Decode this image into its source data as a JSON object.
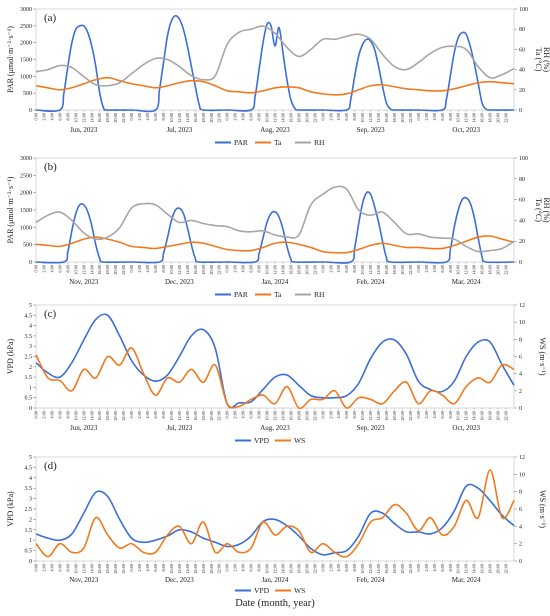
{
  "figure": {
    "x_title": "Date (month, year)"
  },
  "colors": {
    "PAR": "#3b6fd4",
    "Ta": "#f07a1e",
    "RH": "#a6a6a6",
    "VPD": "#3b6fd4",
    "WS": "#f07a1e",
    "grid": "#e0e0e0"
  },
  "chart_data": [
    {
      "id": "a",
      "panel_label": "(a)",
      "type": "line",
      "ylabel_left": "PAR (μmol·m⁻²·s⁻¹)",
      "ylabel_right": "Ta (°C)\nRH (%)",
      "ylim_left": [
        0,
        3000
      ],
      "yticks_left": [
        0,
        500,
        1000,
        1500,
        2000,
        2500,
        3000
      ],
      "ylim_right": [
        0,
        100
      ],
      "yticks_right": [
        0,
        20,
        40,
        60,
        80,
        100
      ],
      "hour_ticks": [
        "0:00",
        "2:00",
        "4:00",
        "6:00",
        "8:00",
        "10:00",
        "12:00",
        "14:00",
        "16:00",
        "18:00",
        "20:00",
        "22:00"
      ],
      "months": [
        "Jun, 2023",
        "Jul, 2023",
        "Aug, 2023",
        "Sep, 2023",
        "Oct, 2023"
      ],
      "x_unit": "hour (0-120 across five diurnal cycles)",
      "x": [
        0,
        6,
        7,
        8,
        9,
        10,
        11,
        12,
        13,
        14,
        15,
        16,
        17,
        18,
        24,
        30,
        31,
        32,
        33,
        34,
        35,
        36,
        37,
        38,
        39,
        40,
        41,
        42,
        48,
        54,
        55,
        56,
        57,
        58,
        59,
        60,
        61,
        62,
        63,
        64,
        65,
        66,
        72,
        78,
        79,
        80,
        81,
        82,
        83,
        84,
        85,
        86,
        87,
        88,
        89,
        90,
        96,
        102,
        103,
        104,
        105,
        106,
        107,
        108,
        109,
        110,
        111,
        112,
        113,
        114,
        120
      ],
      "series": [
        {
          "name": "PAR",
          "axis": "left",
          "values": [
            0,
            0,
            500,
            1300,
            2000,
            2400,
            2500,
            2500,
            2300,
            1900,
            1300,
            500,
            50,
            0,
            0,
            0,
            600,
            1400,
            2200,
            2650,
            2800,
            2700,
            2400,
            1900,
            1300,
            700,
            150,
            0,
            0,
            0,
            400,
            1200,
            2000,
            2550,
            2500,
            1900,
            2450,
            1700,
            900,
            300,
            50,
            0,
            0,
            0,
            300,
            1000,
            1600,
            1950,
            2100,
            2050,
            1800,
            1300,
            700,
            200,
            30,
            0,
            0,
            0,
            300,
            1000,
            1700,
            2150,
            2300,
            2250,
            1900,
            1400,
            800,
            200,
            30,
            0,
            0
          ]
        },
        {
          "name": "Ta",
          "axis": "right",
          "x": [
            0,
            3,
            6,
            9,
            12,
            15,
            18,
            21,
            24,
            27,
            30,
            33,
            36,
            39,
            42,
            45,
            48,
            51,
            54,
            57,
            60,
            63,
            66,
            69,
            72,
            75,
            78,
            81,
            84,
            87,
            90,
            93,
            96,
            99,
            102,
            105,
            108,
            111,
            114,
            117,
            120
          ],
          "values": [
            24,
            22,
            20,
            22,
            26,
            30,
            32,
            29,
            26,
            24,
            22,
            24,
            27,
            29,
            28,
            24,
            19,
            18,
            17,
            19,
            22,
            23,
            22,
            18,
            16,
            15,
            16,
            20,
            24,
            25,
            23,
            21,
            20,
            19,
            19,
            21,
            24,
            27,
            28,
            27,
            26
          ]
        },
        {
          "name": "RH",
          "axis": "right",
          "x": [
            0,
            3,
            6,
            9,
            12,
            15,
            18,
            21,
            24,
            27,
            30,
            33,
            36,
            39,
            42,
            45,
            48,
            51,
            54,
            57,
            60,
            63,
            66,
            69,
            72,
            75,
            78,
            81,
            84,
            87,
            90,
            93,
            96,
            99,
            102,
            105,
            108,
            111,
            114,
            117,
            120
          ],
          "values": [
            38,
            40,
            44,
            42,
            33,
            25,
            24,
            27,
            36,
            45,
            51,
            50,
            43,
            34,
            30,
            34,
            65,
            77,
            80,
            83,
            76,
            62,
            53,
            60,
            70,
            70,
            73,
            75,
            70,
            55,
            43,
            40,
            47,
            56,
            62,
            63,
            60,
            43,
            32,
            35,
            41
          ]
        }
      ],
      "legend": [
        "PAR",
        "Ta",
        "RH"
      ]
    },
    {
      "id": "b",
      "panel_label": "(b)",
      "type": "line",
      "ylabel_left": "PAR (μmol·m⁻²·s⁻¹)",
      "ylabel_right": "Ta (°C)\nRH (%)",
      "ylim_left": [
        0,
        3000
      ],
      "yticks_left": [
        0,
        500,
        1000,
        1500,
        2000,
        2500,
        3000
      ],
      "ylim_right": [
        0,
        100
      ],
      "yticks_right": [
        0,
        20,
        40,
        60,
        80,
        100
      ],
      "hour_ticks": [
        "0:00",
        "2:00",
        "4:00",
        "6:00",
        "8:00",
        "10:00",
        "12:00",
        "14:00",
        "16:00",
        "18:00",
        "20:00",
        "22:00"
      ],
      "months": [
        "Nov, 2023",
        "Dec, 2023",
        "Jan, 2024",
        "Feb, 2024",
        "Mar, 2024"
      ],
      "x_unit": "hour (0-120 across five diurnal cycles)",
      "x": [
        0,
        7,
        8,
        9,
        10,
        11,
        12,
        13,
        14,
        15,
        16,
        17,
        24,
        31,
        32,
        33,
        34,
        35,
        36,
        37,
        38,
        39,
        40,
        41,
        48,
        55,
        56,
        57,
        58,
        59,
        60,
        61,
        62,
        63,
        64,
        65,
        72,
        79,
        80,
        81,
        82,
        83,
        84,
        85,
        86,
        87,
        88,
        89,
        96,
        103,
        104,
        105,
        106,
        107,
        108,
        109,
        110,
        111,
        112,
        113,
        120
      ],
      "series": [
        {
          "name": "PAR",
          "axis": "left",
          "values": [
            0,
            0,
            300,
            900,
            1400,
            1650,
            1650,
            1450,
            1050,
            500,
            100,
            0,
            0,
            0,
            250,
            700,
            1200,
            1500,
            1550,
            1400,
            1000,
            500,
            100,
            0,
            0,
            0,
            250,
            700,
            1150,
            1400,
            1450,
            1300,
            950,
            450,
            80,
            0,
            0,
            0,
            400,
            1100,
            1700,
            2000,
            1950,
            1600,
            1150,
            600,
            120,
            0,
            0,
            0,
            350,
            1000,
            1500,
            1800,
            1850,
            1700,
            1300,
            700,
            150,
            0,
            0
          ]
        },
        {
          "name": "Ta",
          "axis": "right",
          "x": [
            0,
            3,
            6,
            9,
            12,
            15,
            18,
            21,
            24,
            27,
            30,
            33,
            36,
            39,
            42,
            45,
            48,
            51,
            54,
            57,
            60,
            63,
            66,
            69,
            72,
            75,
            78,
            81,
            84,
            87,
            90,
            93,
            96,
            99,
            102,
            105,
            108,
            111,
            114,
            117,
            120
          ],
          "values": [
            17,
            16,
            15,
            18,
            22,
            24,
            22,
            19,
            15,
            14,
            13,
            15,
            17,
            19,
            18,
            15,
            12,
            11,
            11,
            14,
            18,
            19,
            17,
            14,
            10,
            9,
            9,
            12,
            16,
            18,
            16,
            14,
            14,
            13,
            13,
            16,
            20,
            24,
            25,
            22,
            19
          ]
        },
        {
          "name": "RH",
          "axis": "right",
          "x": [
            0,
            3,
            6,
            9,
            12,
            15,
            18,
            21,
            24,
            27,
            30,
            33,
            36,
            39,
            42,
            45,
            48,
            51,
            54,
            57,
            60,
            63,
            66,
            69,
            72,
            75,
            78,
            81,
            84,
            87,
            90,
            93,
            96,
            99,
            102,
            105,
            108,
            111,
            114,
            117,
            120
          ],
          "values": [
            38,
            45,
            48,
            40,
            28,
            22,
            24,
            33,
            52,
            56,
            55,
            46,
            38,
            40,
            37,
            35,
            34,
            30,
            29,
            30,
            26,
            24,
            26,
            55,
            65,
            72,
            70,
            50,
            45,
            48,
            38,
            27,
            27,
            24,
            23,
            22,
            15,
            10,
            11,
            13,
            20
          ]
        }
      ],
      "legend": [
        "PAR",
        "Ta",
        "RH"
      ]
    },
    {
      "id": "c",
      "panel_label": "(c)",
      "type": "line",
      "ylabel_left": "VPD (kPa)",
      "ylabel_right": "WS (m·s⁻¹)",
      "ylim_left": [
        0,
        5
      ],
      "yticks_left": [
        0,
        0.5,
        1,
        1.5,
        2,
        2.5,
        3,
        3.5,
        4,
        4.5,
        5
      ],
      "ylim_right": [
        0,
        12
      ],
      "yticks_right": [
        0,
        2,
        4,
        6,
        8,
        10,
        12
      ],
      "hour_ticks": [
        "0:00",
        "2:00",
        "4:00",
        "6:00",
        "8:00",
        "10:00",
        "12:00",
        "14:00",
        "16:00",
        "18:00",
        "20:00",
        "22:00"
      ],
      "months": [
        "Jun, 2023",
        "Jul, 2023",
        "Aug, 2023",
        "Sep, 2023",
        "Oct, 2023"
      ],
      "x_unit": "hour (0-120 across five diurnal cycles)",
      "x": [
        0,
        3,
        6,
        9,
        12,
        15,
        18,
        21,
        24,
        27,
        30,
        33,
        36,
        39,
        42,
        45,
        48,
        51,
        54,
        57,
        60,
        63,
        66,
        69,
        72,
        75,
        78,
        81,
        84,
        87,
        90,
        93,
        96,
        99,
        102,
        105,
        108,
        111,
        114,
        117,
        120
      ],
      "series": [
        {
          "name": "VPD",
          "axis": "left",
          "values": [
            2.2,
            1.7,
            1.5,
            2.2,
            3.3,
            4.3,
            4.5,
            3.5,
            2.3,
            1.6,
            1.3,
            1.6,
            2.5,
            3.5,
            3.8,
            2.9,
            0.2,
            0.25,
            0.3,
            0.9,
            1.5,
            1.6,
            1.1,
            0.6,
            0.5,
            0.5,
            0.6,
            1.2,
            2.4,
            3.2,
            3.3,
            2.6,
            1.3,
            0.9,
            0.8,
            1.3,
            2.5,
            3.2,
            3.2,
            2.1,
            1.1
          ]
        },
        {
          "name": "WS",
          "axis": "right",
          "values": [
            6.2,
            3.5,
            3.2,
            2,
            4.5,
            3.5,
            6,
            5,
            7,
            4,
            1.5,
            3.5,
            3,
            4.5,
            3,
            5,
            0.5,
            0.2,
            1,
            1.5,
            0.5,
            2.5,
            0,
            1,
            1,
            2,
            0,
            1.2,
            1,
            0.5,
            2,
            3,
            0.5,
            2,
            1.5,
            0.5,
            2.5,
            3.5,
            3,
            5,
            4.5
          ]
        }
      ],
      "legend": [
        "VPD",
        "WS"
      ]
    },
    {
      "id": "d",
      "panel_label": "(d)",
      "type": "line",
      "ylabel_left": "VPD (kPa)",
      "ylabel_right": "WS (m·s⁻¹)",
      "ylim_left": [
        0,
        5
      ],
      "yticks_left": [
        0,
        0.5,
        1,
        1.5,
        2,
        2.5,
        3,
        3.5,
        4,
        4.5,
        5
      ],
      "ylim_right": [
        0,
        12
      ],
      "yticks_right": [
        0,
        2,
        4,
        6,
        8,
        10,
        12
      ],
      "hour_ticks": [
        "0:00",
        "2:00",
        "4:00",
        "6:00",
        "8:00",
        "10:00",
        "12:00",
        "14:00",
        "16:00",
        "18:00",
        "20:00",
        "22:00"
      ],
      "months": [
        "Nov, 2023",
        "Dec, 2023",
        "Jan, 2024",
        "Feb, 2024",
        "Mar, 2024"
      ],
      "x_unit": "hour (0-120 across five diurnal cycles)",
      "x": [
        0,
        3,
        6,
        9,
        12,
        15,
        18,
        21,
        24,
        27,
        30,
        33,
        36,
        39,
        42,
        45,
        48,
        51,
        54,
        57,
        60,
        63,
        66,
        69,
        72,
        75,
        78,
        81,
        84,
        87,
        90,
        93,
        96,
        99,
        102,
        105,
        108,
        111,
        114,
        117,
        120
      ],
      "series": [
        {
          "name": "VPD",
          "axis": "left",
          "values": [
            1.3,
            1.1,
            1,
            1.3,
            2.3,
            3.3,
            3.1,
            2,
            1.1,
            0.9,
            1,
            1.2,
            1.5,
            1.4,
            1.1,
            0.9,
            0.7,
            0.8,
            1.2,
            1.9,
            2,
            1.7,
            1.2,
            0.6,
            0.3,
            0.4,
            0.5,
            1.2,
            2.3,
            2.3,
            1.8,
            1.4,
            1.4,
            1.3,
            1.6,
            2.4,
            3.6,
            3.5,
            2.9,
            2.2,
            1.7
          ]
        },
        {
          "name": "WS",
          "axis": "right",
          "values": [
            2,
            0.5,
            2,
            1,
            1.5,
            5,
            3,
            1.5,
            2,
            1,
            1,
            3,
            4,
            2,
            4.5,
            1,
            2,
            1,
            1.5,
            4.5,
            3,
            4,
            3.5,
            1,
            2,
            1,
            0.5,
            2,
            4.5,
            5,
            6.5,
            5.5,
            3.5,
            5,
            3,
            4,
            7,
            5,
            10.5,
            5,
            7
          ]
        }
      ],
      "legend": [
        "VPD",
        "WS"
      ]
    }
  ]
}
